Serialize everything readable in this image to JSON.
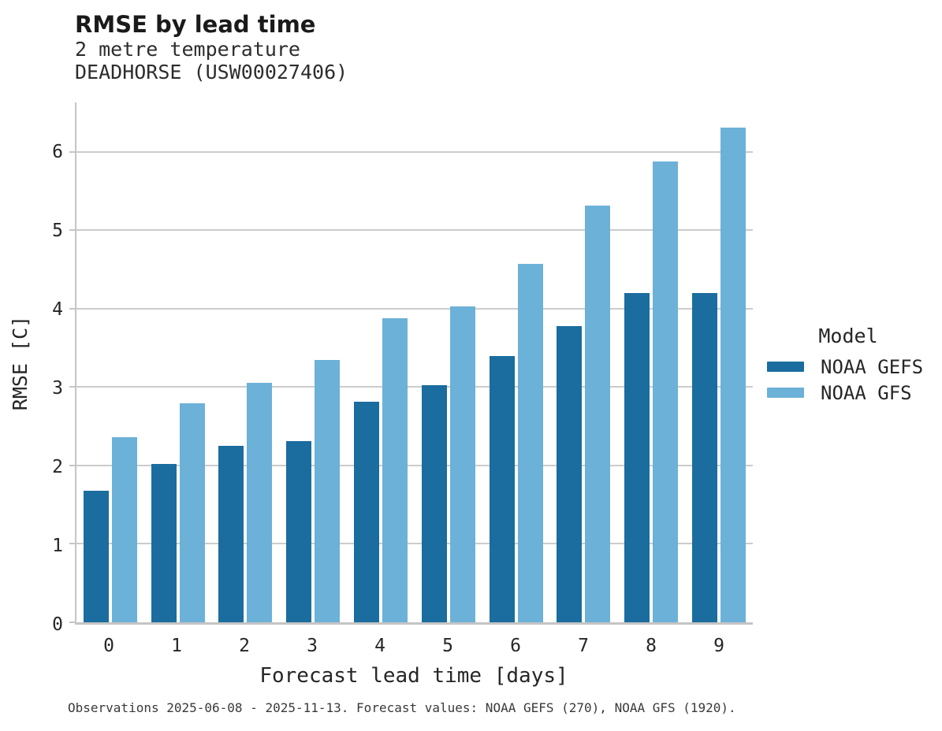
{
  "chart_data": {
    "type": "bar",
    "title": "RMSE by lead time",
    "subtitle_line1": "2 metre temperature",
    "subtitle_line2": "DEADHORSE (USW00027406)",
    "xlabel": "Forecast lead time [days]",
    "ylabel": "RMSE [C]",
    "categories": [
      "0",
      "1",
      "2",
      "3",
      "4",
      "5",
      "6",
      "7",
      "8",
      "9"
    ],
    "series": [
      {
        "name": "NOAA GEFS",
        "color": "#1A6D9E",
        "values": [
          1.68,
          2.02,
          2.25,
          2.31,
          2.81,
          3.02,
          3.4,
          3.78,
          4.2,
          4.2
        ]
      },
      {
        "name": "NOAA GFS",
        "color": "#6CB1D8",
        "values": [
          2.36,
          2.79,
          3.05,
          3.35,
          3.88,
          4.03,
          4.57,
          5.31,
          5.88,
          6.31
        ]
      }
    ],
    "ylim": [
      0,
      6.63
    ],
    "yticks": [
      0,
      1,
      2,
      3,
      4,
      5,
      6
    ],
    "grid": "horizontal-only",
    "legend": {
      "title": "Model",
      "position": "right"
    },
    "footnote": "Observations 2025-06-08 - 2025-11-13. Forecast values: NOAA GEFS (270), NOAA GFS (1920)."
  },
  "colors": {
    "background": "#ffffff",
    "grid": "#cccccc",
    "spine": "#c5c5c5",
    "text": "#262626",
    "footnote_text": "#3a3a3a"
  }
}
